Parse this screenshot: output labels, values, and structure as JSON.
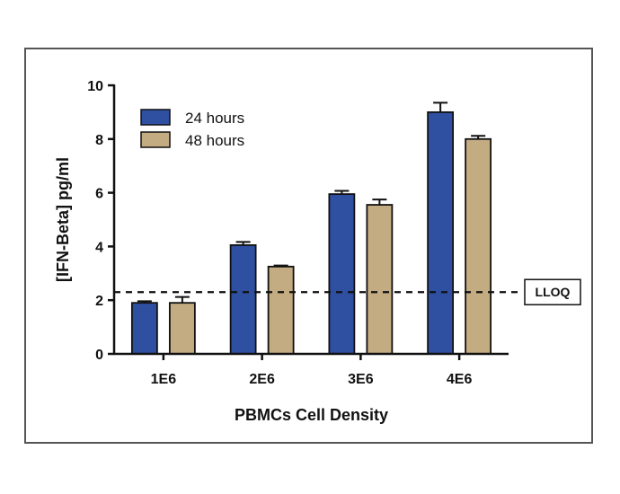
{
  "chart_data": {
    "type": "bar",
    "xlabel": "PBMCs Cell Density",
    "ylabel": "[IFN-Beta] pg/ml",
    "categories": [
      "1E6",
      "2E6",
      "3E6",
      "4E6"
    ],
    "ylim": [
      0,
      10
    ],
    "yticks": [
      "0",
      "2",
      "4",
      "6",
      "8",
      "10"
    ],
    "legend_position": "top-left",
    "series": [
      {
        "name": "24 hours",
        "color": "#2f4fa1",
        "values": [
          1.9,
          4.05,
          5.95,
          9.0
        ],
        "errors": [
          0.06,
          0.12,
          0.12,
          0.35
        ]
      },
      {
        "name": "48 hours",
        "color": "#c3ab82",
        "values": [
          1.9,
          3.25,
          5.55,
          8.0
        ],
        "errors": [
          0.22,
          0.04,
          0.2,
          0.12
        ]
      }
    ],
    "reference_line": {
      "label": "LLOQ",
      "value": 2.3,
      "style": "dashed"
    }
  }
}
